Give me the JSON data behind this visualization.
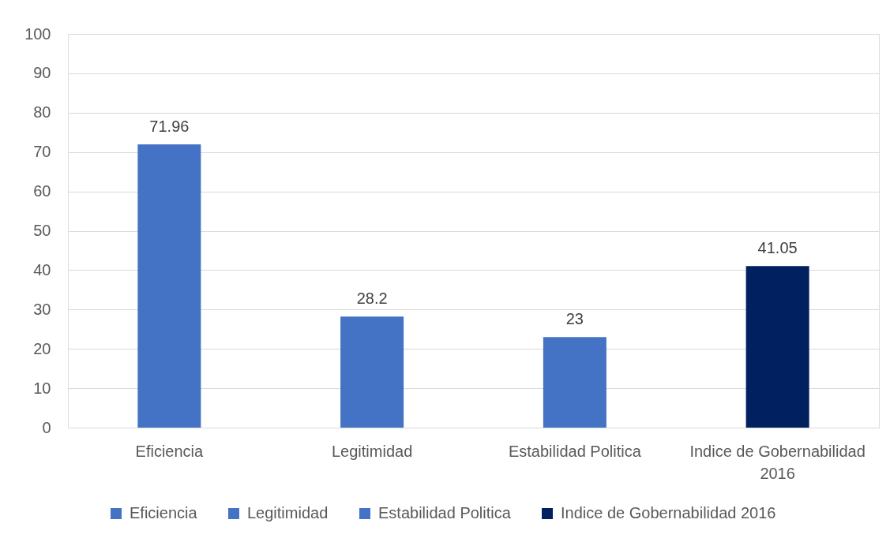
{
  "chart_data": {
    "type": "bar",
    "categories": [
      "Eficiencia",
      "Legitimidad",
      "Estabilidad Politica",
      "Indice de Gobernabilidad 2016"
    ],
    "series": [
      {
        "name": "Eficiencia",
        "color": "#4472c4",
        "values": [
          71.96,
          null,
          null,
          null
        ]
      },
      {
        "name": "Legitimidad",
        "color": "#4472c4",
        "values": [
          null,
          28.2,
          null,
          null
        ]
      },
      {
        "name": "Estabilidad Politica",
        "color": "#4472c4",
        "values": [
          null,
          null,
          23,
          null
        ]
      },
      {
        "name": "Indice de Gobernabilidad 2016",
        "color": "#002060",
        "values": [
          null,
          null,
          null,
          41.05
        ]
      }
    ],
    "ylim": [
      0,
      100
    ],
    "yticks": [
      0,
      10,
      20,
      30,
      40,
      50,
      60,
      70,
      80,
      90,
      100
    ],
    "grid": "y",
    "legend": "bottom",
    "data_labels": true
  }
}
